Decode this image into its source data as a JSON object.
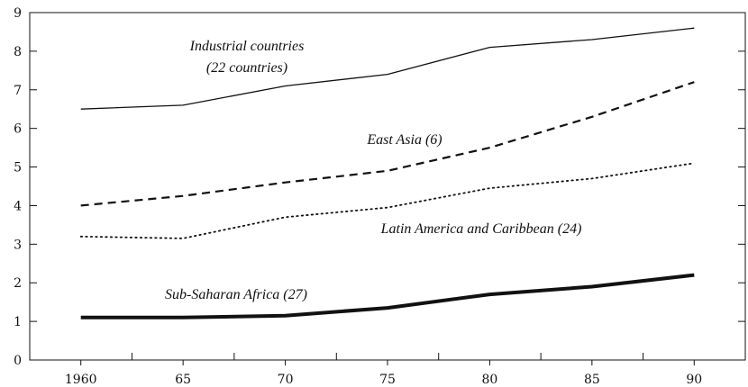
{
  "chart_data": {
    "type": "line",
    "title": "",
    "xlabel": "",
    "ylabel": "",
    "x": [
      1960,
      1965,
      1970,
      1975,
      1980,
      1985,
      1990
    ],
    "x_tick_labels": [
      "1960",
      "65",
      "70",
      "75",
      "80",
      "85",
      "90"
    ],
    "xlim": [
      1957.5,
      1992.5
    ],
    "ylim": [
      0,
      9
    ],
    "y_ticks": [
      0,
      1,
      2,
      3,
      4,
      5,
      6,
      7,
      8,
      9
    ],
    "y_tick_labels": [
      "0",
      "1",
      "2",
      "3",
      "4",
      "5",
      "6",
      "7",
      "8",
      "9"
    ],
    "grid": false,
    "legend": "none",
    "series": [
      {
        "name": "Industrial countries (22 countries)",
        "values": [
          6.5,
          6.6,
          7.1,
          7.4,
          8.1,
          8.3,
          8.6
        ],
        "style": "solid-thin",
        "color": "#111111"
      },
      {
        "name": "East Asia (6)",
        "values": [
          4.0,
          4.25,
          4.6,
          4.9,
          5.5,
          6.3,
          7.2
        ],
        "style": "dashed",
        "color": "#111111"
      },
      {
        "name": "Latin America and Caribbean (24)",
        "values": [
          3.2,
          3.15,
          3.7,
          3.95,
          4.45,
          4.7,
          5.1
        ],
        "style": "dotted",
        "color": "#111111"
      },
      {
        "name": "Sub-Saharan Africa (27)",
        "values": [
          1.1,
          1.1,
          1.15,
          1.35,
          1.7,
          1.9,
          2.2
        ],
        "style": "solid-thick",
        "color": "#111111"
      }
    ],
    "annotations": {
      "industrial_line1": "Industrial countries",
      "industrial_line2": "(22 countries)",
      "east_asia": "East Asia (6)",
      "latin_america": "Latin America and Caribbean (24)",
      "africa": "Sub-Saharan Africa (27)"
    }
  }
}
